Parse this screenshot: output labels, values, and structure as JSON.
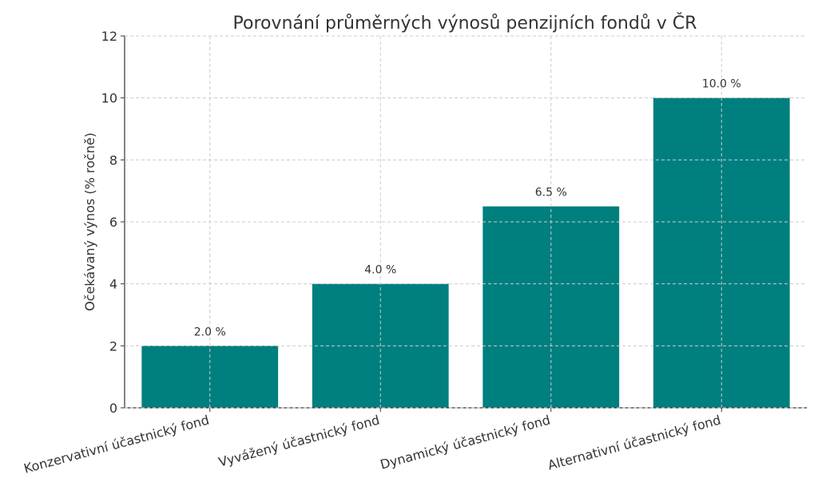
{
  "chart_data": {
    "type": "bar",
    "title": "Porovnání průměrných výnosů penzijních fondů v ČR",
    "xlabel": "",
    "ylabel": "Očekávaný výnos (% ročně)",
    "categories": [
      "Konzervativní účastnický fond",
      "Vyvážený účastnický fond",
      "Dynamický účastnický fond",
      "Alternativní účastnický fond"
    ],
    "values": [
      2.0,
      4.0,
      6.5,
      10.0
    ],
    "value_labels": [
      "2.0 %",
      "4.0 %",
      "6.5 %",
      "10.0 %"
    ],
    "ylim": [
      0,
      12
    ],
    "yticks": [
      0,
      2,
      4,
      6,
      8,
      10,
      12
    ],
    "grid": true,
    "bar_color": "#007f7f"
  }
}
